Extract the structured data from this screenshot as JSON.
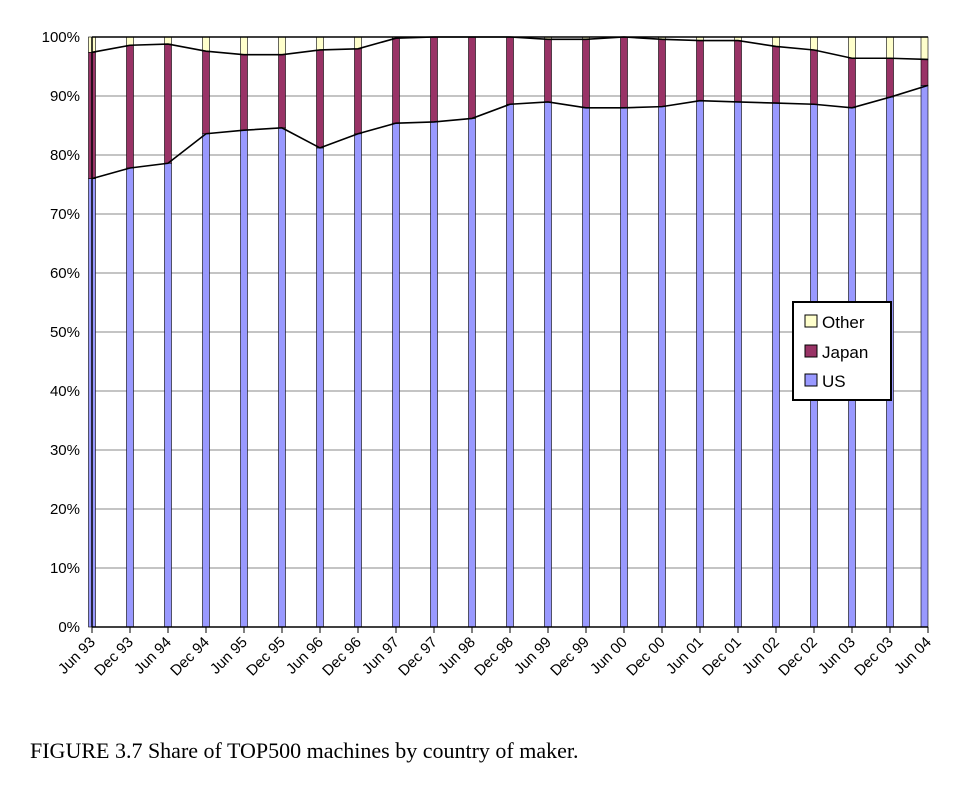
{
  "caption": "FIGURE 3.7  Share of TOP500 machines by country of maker.",
  "chart_data": {
    "type": "bar",
    "stacked": true,
    "percent": true,
    "title": "",
    "xlabel": "",
    "ylabel": "",
    "ylim": [
      0,
      100
    ],
    "yticks": [
      "0%",
      "10%",
      "20%",
      "30%",
      "40%",
      "50%",
      "60%",
      "70%",
      "80%",
      "90%",
      "100%"
    ],
    "grid": true,
    "legend_position": "right",
    "categories": [
      "Jun 93",
      "Dec 93",
      "Jun 94",
      "Dec 94",
      "Jun 95",
      "Dec 95",
      "Jun 96",
      "Dec 96",
      "Jun 97",
      "Dec 97",
      "Jun 98",
      "Dec 98",
      "Jun 99",
      "Dec 99",
      "Jun 00",
      "Dec 00",
      "Jun 01",
      "Dec 01",
      "Jun 02",
      "Dec 02",
      "Jun 03",
      "Dec 03",
      "Jun 04"
    ],
    "series": [
      {
        "name": "US",
        "color": "#9999ff",
        "values": [
          76,
          77.8,
          78.6,
          83.6,
          84.2,
          84.6,
          81.2,
          83.6,
          85.4,
          85.6,
          86.2,
          88.6,
          89,
          88,
          88,
          88.2,
          89.2,
          89,
          88.8,
          88.6,
          88,
          89.8,
          91.8
        ]
      },
      {
        "name": "Japan",
        "color": "#993366",
        "values": [
          21.4,
          20.8,
          20.2,
          14,
          12.8,
          12.4,
          16.6,
          14.4,
          14.4,
          14.4,
          13.8,
          11.4,
          10.6,
          11.6,
          12,
          11.4,
          10.2,
          10.4,
          9.6,
          9.2,
          8.4,
          6.6,
          4.4
        ]
      },
      {
        "name": "Other",
        "color": "#ffffcc",
        "values": [
          2.6,
          1.4,
          1.2,
          2.4,
          3,
          3,
          2.2,
          2,
          0.2,
          0,
          0,
          0,
          0.4,
          0.4,
          0,
          0.4,
          0.6,
          0.6,
          1.6,
          2.2,
          3.6,
          3.6,
          3.8
        ]
      }
    ]
  }
}
